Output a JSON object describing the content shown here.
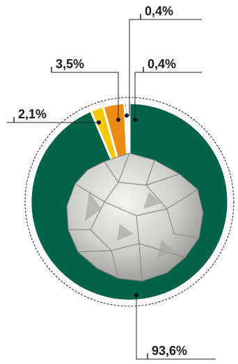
{
  "chart_data": {
    "type": "pie",
    "title": "",
    "slices": [
      {
        "label": "0,4%",
        "value": 0.4,
        "color": "#f4f0e2"
      },
      {
        "label": "0,4%",
        "value": 0.4,
        "color": "#1f2a2b"
      },
      {
        "label": "3,5%",
        "value": 3.5,
        "color": "#ec8c12"
      },
      {
        "label": "2,1%",
        "value": 2.1,
        "color": "#f7c600"
      },
      {
        "label": "93,6%",
        "value": 93.6,
        "color": "#02634a"
      }
    ],
    "center_image": "crumpled-paper-ball"
  }
}
